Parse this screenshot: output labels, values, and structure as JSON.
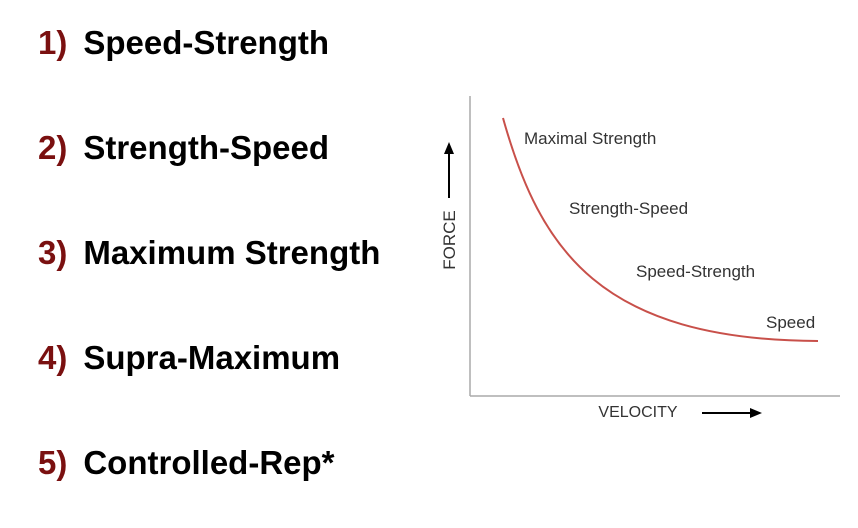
{
  "list": {
    "accent_color": "#7a1010",
    "items": [
      {
        "number": "1)",
        "label": "Speed-Strength"
      },
      {
        "number": "2)",
        "label": "Strength-Speed"
      },
      {
        "number": "3)",
        "label": "Maximum Strength"
      },
      {
        "number": "4)",
        "label": "Supra-Maximum"
      },
      {
        "number": "5)",
        "label": "Controlled-Rep*"
      }
    ]
  },
  "diagram": {
    "y_axis_label": "FORCE",
    "x_axis_label": "VELOCITY",
    "curve_color": "#c8504a",
    "curve_labels": [
      "Maximal Strength",
      "Strength-Speed",
      "Speed-Strength",
      "Speed"
    ]
  }
}
